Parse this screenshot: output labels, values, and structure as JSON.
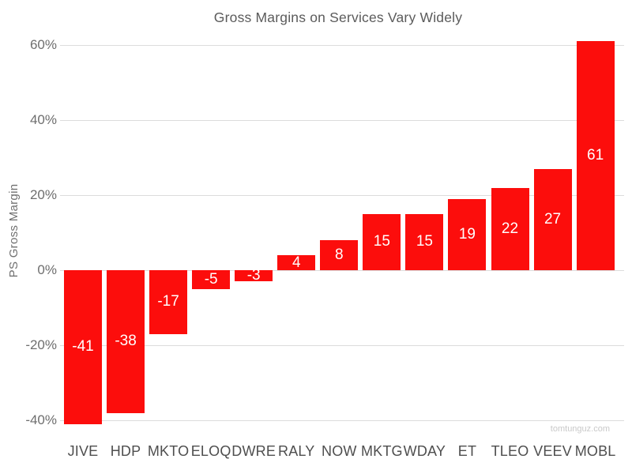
{
  "chart_data": {
    "type": "bar",
    "title": "Gross Margins on Services Vary Widely",
    "xlabel": "",
    "ylabel": "PS Gross Margin",
    "categories": [
      "JIVE",
      "HDP",
      "MKTO",
      "ELOQ",
      "DWRE",
      "RALY",
      "NOW",
      "MKTG",
      "WDAY",
      "ET",
      "TLEO",
      "VEEV",
      "MOBL"
    ],
    "values": [
      -41,
      -38,
      -17,
      -5,
      -3,
      4,
      8,
      15,
      15,
      19,
      22,
      27,
      61
    ],
    "bar_labels": [
      "-41",
      "-38",
      "-17",
      "-5",
      "-3",
      "4",
      "8",
      "15",
      "15",
      "19",
      "22",
      "27",
      "61"
    ],
    "yticks": [
      {
        "value": 60,
        "label": "60%"
      },
      {
        "value": 40,
        "label": "40%"
      },
      {
        "value": 20,
        "label": "20%"
      },
      {
        "value": 0,
        "label": "0%"
      },
      {
        "value": -20,
        "label": "-20%"
      },
      {
        "value": -40,
        "label": "-40%"
      }
    ],
    "ylim": [
      -44,
      64
    ],
    "grid": "horizontal-major-only",
    "legend": "none",
    "colors": {
      "bar": "#FC0D0C",
      "bar_label": "#FFFFFF",
      "gridline": "#DCDCDC",
      "title": "#5B5B5B",
      "y_axis_text": "#6E6E6E",
      "x_axis_text": "#4E4E4E",
      "axis_title": "#707070",
      "background": "#FFFFFF",
      "watermark": "#C9C9C9"
    }
  },
  "watermark": {
    "text": "tomtunguz.com"
  }
}
